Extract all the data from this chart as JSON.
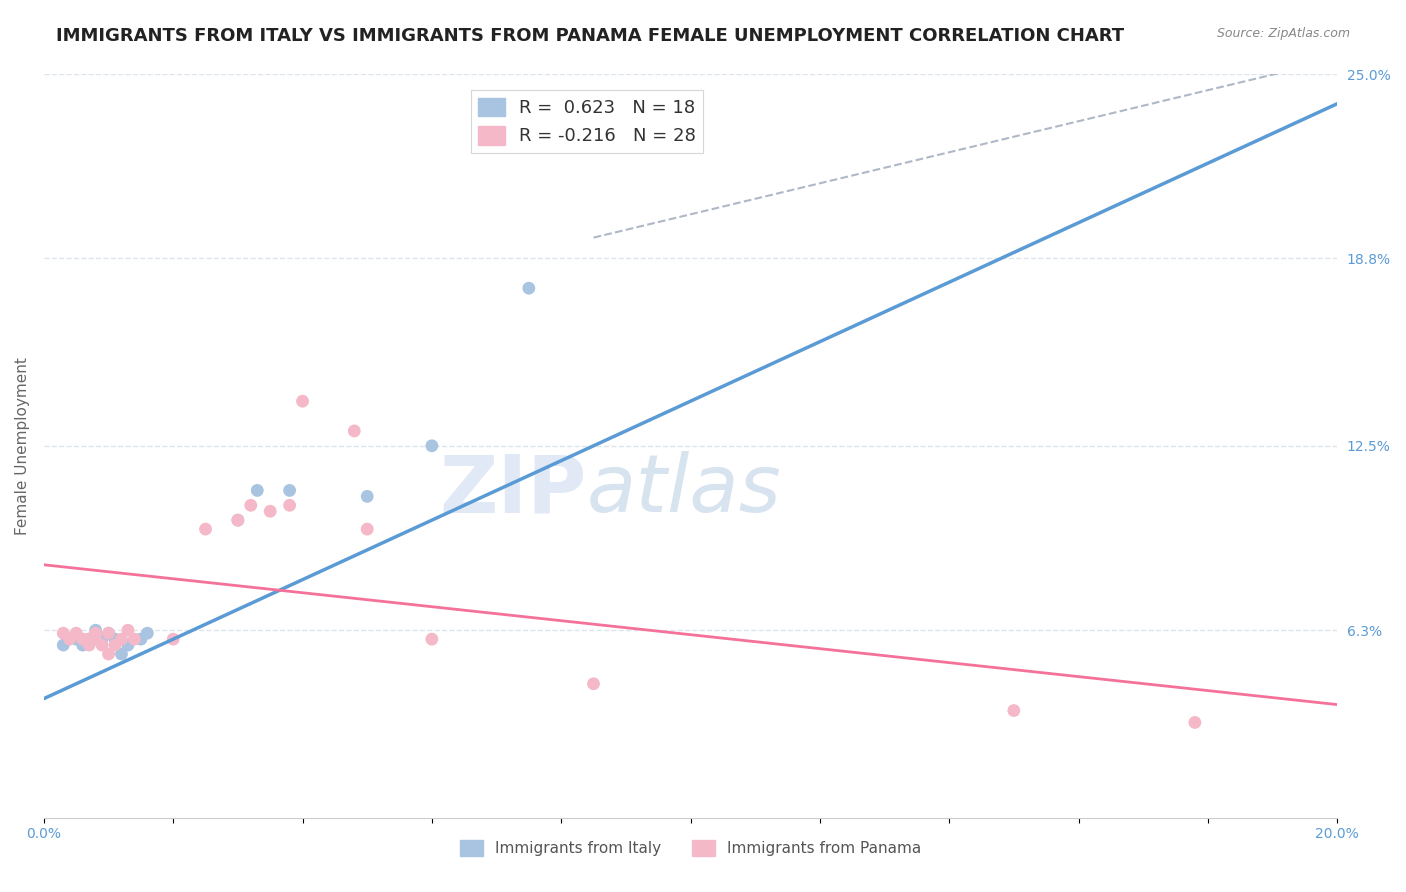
{
  "title": "IMMIGRANTS FROM ITALY VS IMMIGRANTS FROM PANAMA FEMALE UNEMPLOYMENT CORRELATION CHART",
  "source": "Source: ZipAtlas.com",
  "ylabel": "Female Unemployment",
  "xlim": [
    0.0,
    0.2
  ],
  "ylim": [
    0.0,
    0.25
  ],
  "xtick_positions": [
    0.0,
    0.02,
    0.04,
    0.06,
    0.08,
    0.1,
    0.12,
    0.14,
    0.16,
    0.18,
    0.2
  ],
  "xtick_labels": [
    "0.0%",
    "",
    "",
    "",
    "",
    "",
    "",
    "",
    "",
    "",
    "20.0%"
  ],
  "ytick_vals_right": [
    0.063,
    0.125,
    0.188,
    0.25
  ],
  "ytick_labels_right": [
    "6.3%",
    "12.5%",
    "18.8%",
    "25.0%"
  ],
  "watermark_part1": "ZIP",
  "watermark_part2": "atlas",
  "legend_entries": [
    {
      "label": "R =  0.623   N = 18",
      "color": "#a8c4e0"
    },
    {
      "label": "R = -0.216   N = 28",
      "color": "#f4b8c8"
    }
  ],
  "italy_scatter_x": [
    0.003,
    0.005,
    0.006,
    0.007,
    0.008,
    0.009,
    0.01,
    0.011,
    0.012,
    0.013,
    0.015,
    0.016,
    0.03,
    0.033,
    0.038,
    0.05,
    0.06,
    0.075
  ],
  "italy_scatter_y": [
    0.058,
    0.06,
    0.058,
    0.06,
    0.063,
    0.06,
    0.062,
    0.06,
    0.055,
    0.058,
    0.06,
    0.062,
    0.1,
    0.11,
    0.11,
    0.108,
    0.125,
    0.178
  ],
  "panama_scatter_x": [
    0.003,
    0.004,
    0.005,
    0.006,
    0.007,
    0.007,
    0.008,
    0.008,
    0.009,
    0.01,
    0.01,
    0.011,
    0.012,
    0.013,
    0.014,
    0.02,
    0.025,
    0.03,
    0.032,
    0.035,
    0.038,
    0.04,
    0.048,
    0.05,
    0.06,
    0.085,
    0.15,
    0.178
  ],
  "panama_scatter_y": [
    0.062,
    0.06,
    0.062,
    0.06,
    0.06,
    0.058,
    0.062,
    0.06,
    0.058,
    0.062,
    0.055,
    0.058,
    0.06,
    0.063,
    0.06,
    0.06,
    0.097,
    0.1,
    0.105,
    0.103,
    0.105,
    0.14,
    0.13,
    0.097,
    0.06,
    0.045,
    0.036,
    0.032
  ],
  "italy_line_x": [
    0.0,
    0.2
  ],
  "italy_line_y": [
    0.04,
    0.24
  ],
  "italy_line_color": "#5b9bd5",
  "panama_line_x": [
    0.0,
    0.2
  ],
  "panama_line_y": [
    0.085,
    0.038
  ],
  "panama_line_color": "#f4729a",
  "diagonal_line_x": [
    0.085,
    0.2
  ],
  "diagonal_line_y": [
    0.195,
    0.255
  ],
  "diagonal_line_color": "#b0b8c8",
  "scatter_italy_color": "#a8c4e0",
  "scatter_panama_color": "#f4b8c8",
  "scatter_size": 85,
  "background_color": "#ffffff",
  "grid_color": "#dde4ee",
  "tick_color": "#5b9bd5",
  "title_fontsize": 13,
  "axis_label_fontsize": 11,
  "tick_fontsize": 10,
  "legend_bottom": [
    {
      "label": "Immigrants from Italy",
      "color": "#a8c4e0"
    },
    {
      "label": "Immigrants from Panama",
      "color": "#f4b8c8"
    }
  ]
}
